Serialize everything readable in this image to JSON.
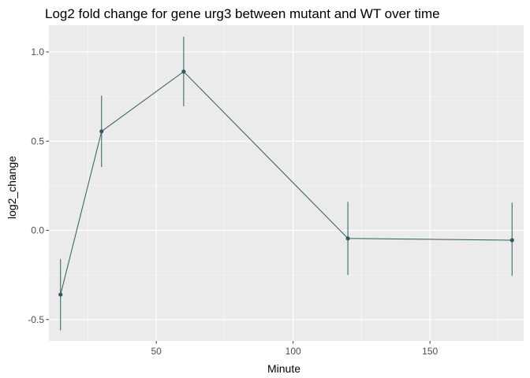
{
  "chart_data": {
    "type": "line",
    "title": "Log2 fold change for gene urg3 between mutant and WT over time",
    "xlabel": "Minute",
    "ylabel": "log2_change",
    "xlim": [
      10.75,
      184.25
    ],
    "ylim": [
      -0.62,
      1.15
    ],
    "x_ticks": [
      50,
      100,
      150
    ],
    "x_tick_labels": [
      "50",
      "100",
      "150"
    ],
    "y_ticks": [
      -0.5,
      0.0,
      0.5,
      1.0
    ],
    "y_tick_labels": [
      "-0.5",
      "0.0",
      "0.5",
      "1.0"
    ],
    "grid": true,
    "series": [
      {
        "color": "#2f5b5b",
        "points": [
          {
            "x": 15,
            "y": -0.36,
            "lo": -0.56,
            "hi": -0.16
          },
          {
            "x": 30,
            "y": 0.555,
            "lo": 0.355,
            "hi": 0.755
          },
          {
            "x": 60,
            "y": 0.89,
            "lo": 0.695,
            "hi": 1.085
          },
          {
            "x": 120,
            "y": -0.045,
            "lo": -0.25,
            "hi": 0.16
          },
          {
            "x": 180,
            "y": -0.055,
            "lo": -0.255,
            "hi": 0.155
          }
        ]
      }
    ]
  },
  "colors": {
    "panel_background": "#ebebeb",
    "major_grid": "#ffffff",
    "series": "#2f5b5b"
  }
}
